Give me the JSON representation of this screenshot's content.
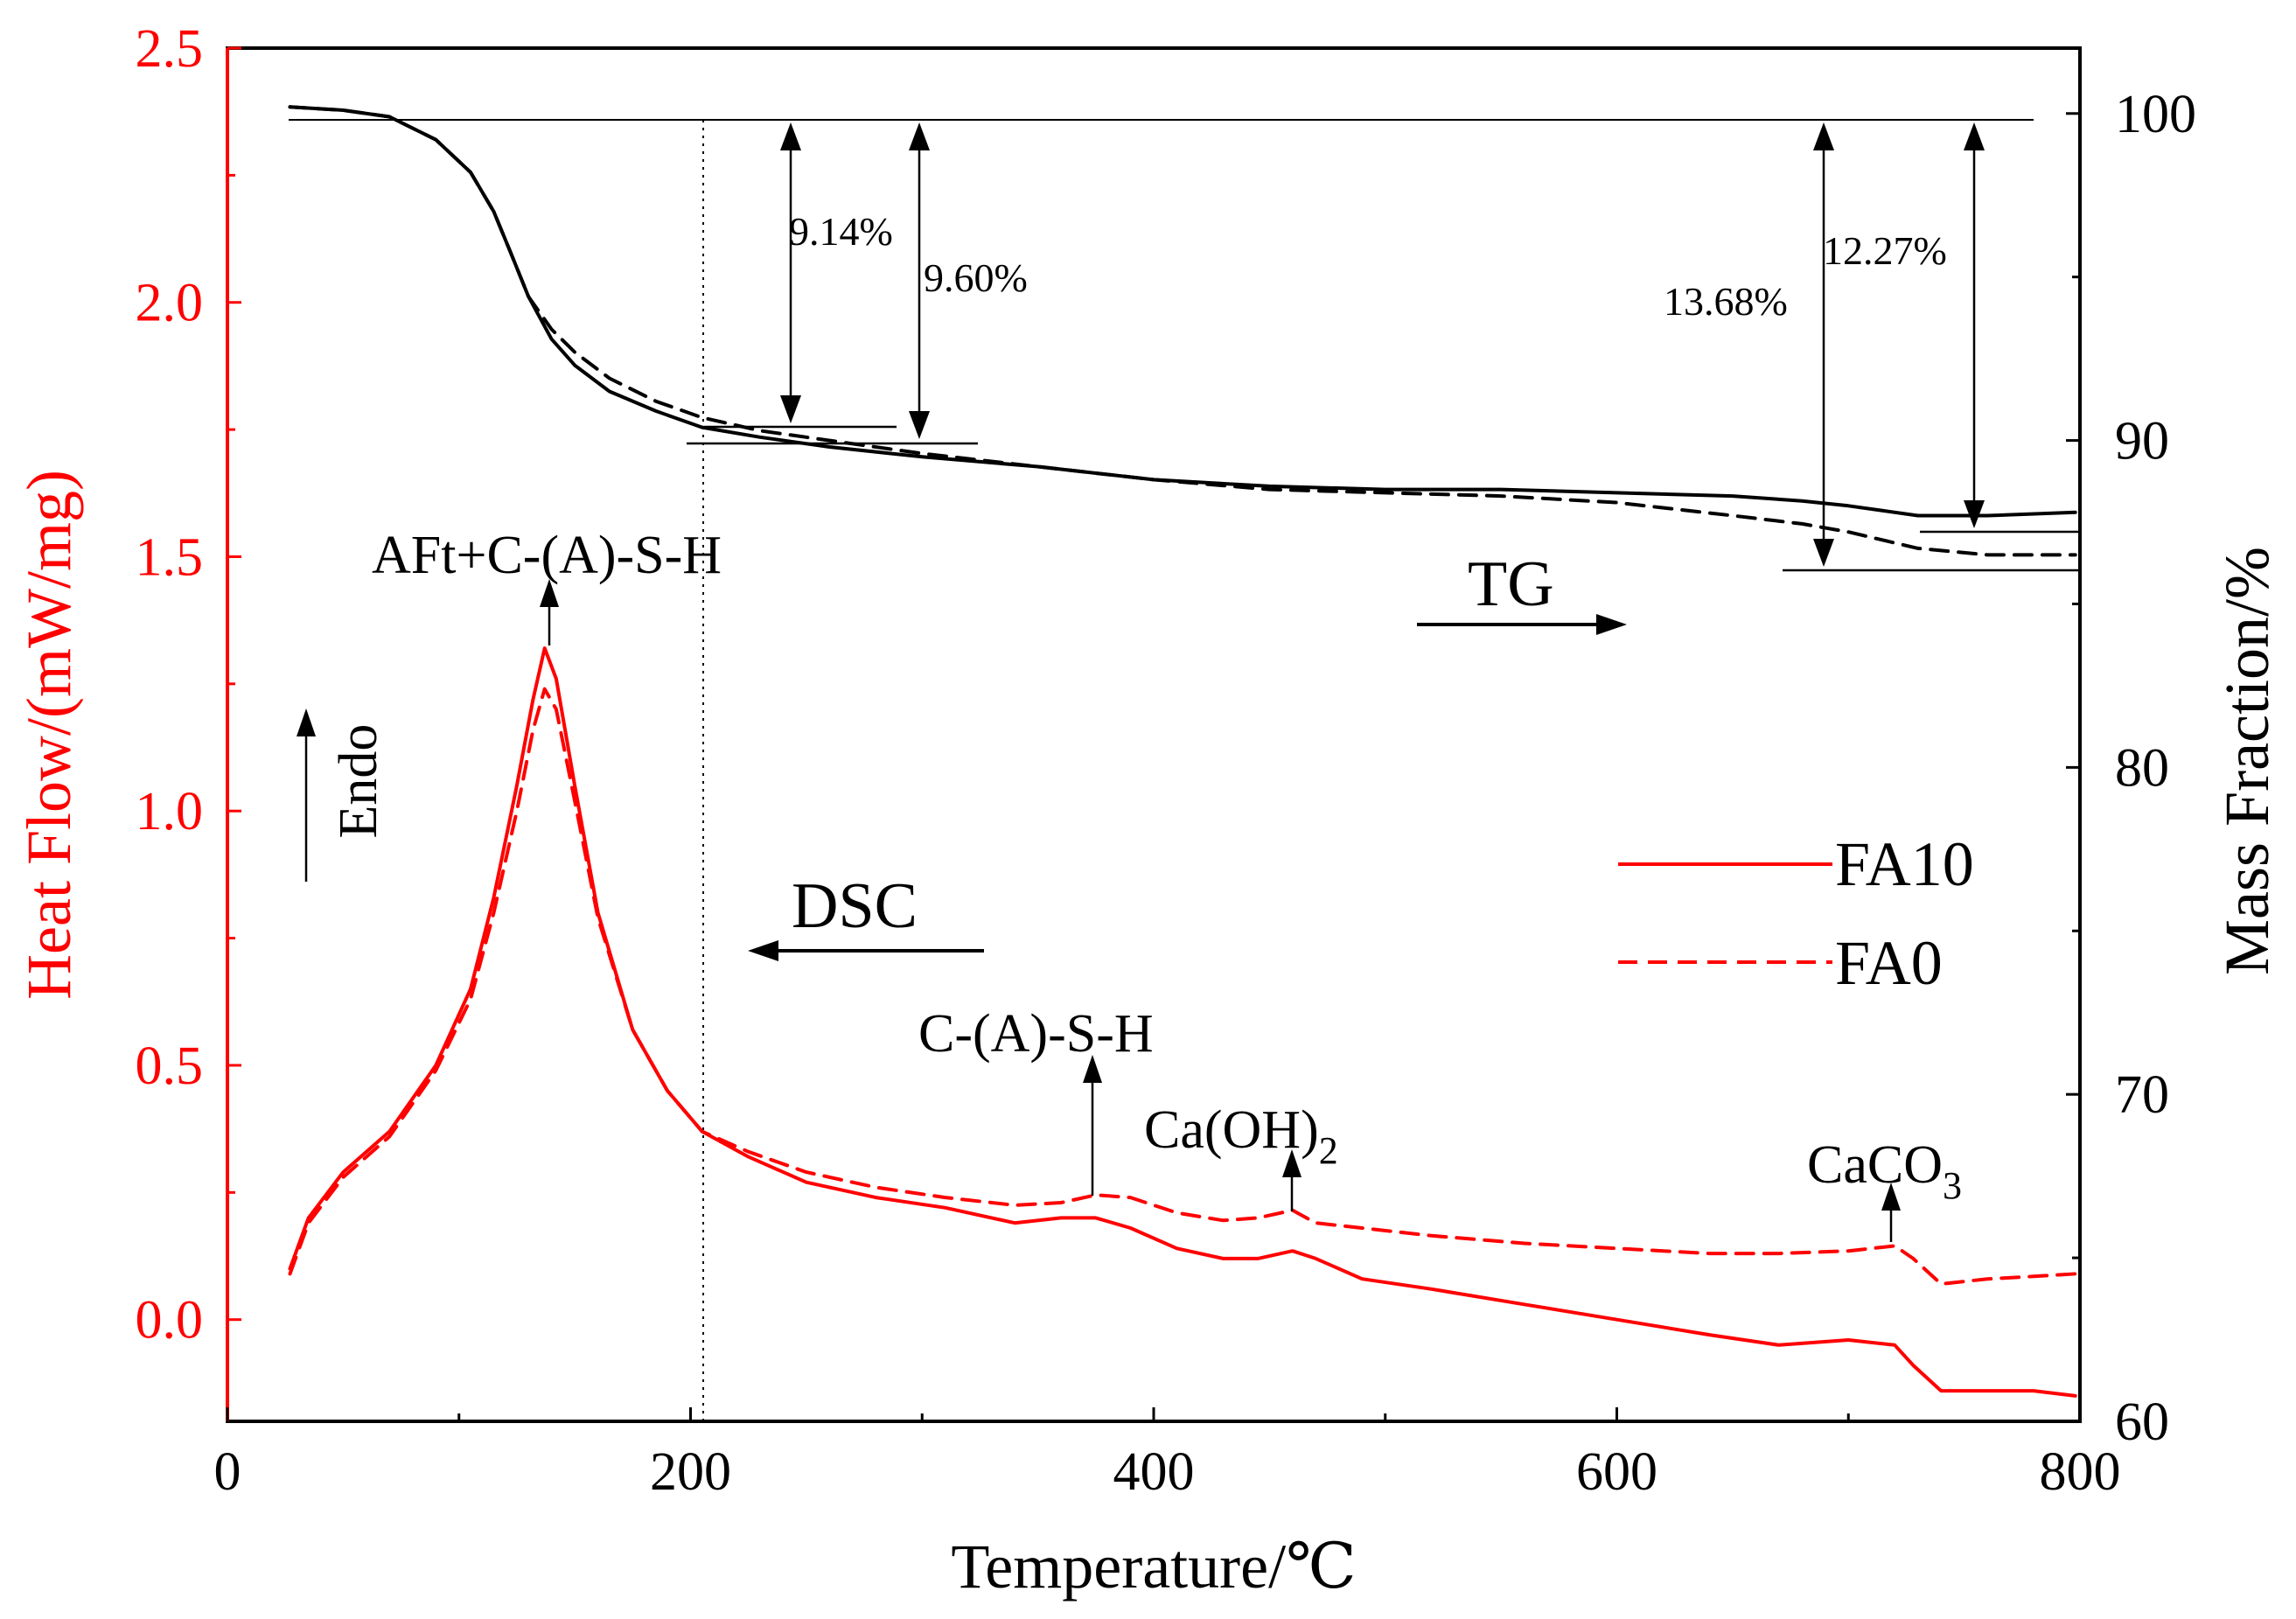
{
  "chart_data": {
    "type": "line",
    "xlabel": "Temperature/℃",
    "x_axis": {
      "range": [
        0,
        800
      ],
      "ticks": [
        0,
        200,
        400,
        600,
        800
      ],
      "tick_labels": [
        "0",
        "200",
        "400",
        "600",
        "800"
      ]
    },
    "y_left": {
      "label": "Heat Flow/(mW/mg)",
      "range": [
        -0.2,
        2.5
      ],
      "ticks": [
        0.0,
        0.5,
        1.0,
        1.5,
        2.0,
        2.5
      ],
      "tick_labels": [
        "0.0",
        "0.5",
        "1.0",
        "1.5",
        "2.0",
        "2.5"
      ],
      "color": "#ff0000"
    },
    "y_right": {
      "label": "Mass Fraction/%",
      "range": [
        60,
        102
      ],
      "ticks": [
        60,
        70,
        80,
        90,
        100
      ],
      "tick_labels": [
        "60",
        "70",
        "80",
        "90",
        "100"
      ],
      "color": "#000000"
    },
    "series": [
      {
        "name": "FA10",
        "kind": "DSC",
        "axis": "left",
        "style": "solid",
        "color": "#ff0000",
        "x": [
          27,
          35,
          50,
          70,
          90,
          105,
          115,
          125,
          132,
          137,
          142,
          150,
          160,
          175,
          190,
          205,
          225,
          250,
          280,
          310,
          340,
          360,
          375,
          390,
          410,
          430,
          445,
          460,
          470,
          490,
          520,
          560,
          600,
          640,
          670,
          700,
          720,
          728,
          740,
          760,
          780,
          798
        ],
        "values": [
          0.1,
          0.2,
          0.29,
          0.37,
          0.5,
          0.65,
          0.83,
          1.05,
          1.22,
          1.32,
          1.26,
          1.05,
          0.8,
          0.57,
          0.45,
          0.37,
          0.32,
          0.27,
          0.24,
          0.22,
          0.19,
          0.2,
          0.2,
          0.18,
          0.14,
          0.12,
          0.12,
          0.135,
          0.12,
          0.08,
          0.06,
          0.03,
          0.0,
          -0.03,
          -0.05,
          -0.04,
          -0.05,
          -0.09,
          -0.14,
          -0.14,
          -0.14,
          -0.15
        ]
      },
      {
        "name": "FA0",
        "kind": "DSC",
        "axis": "left",
        "style": "dashed",
        "color": "#ff0000",
        "x": [
          27,
          35,
          50,
          70,
          90,
          105,
          115,
          125,
          132,
          137,
          142,
          150,
          160,
          175,
          190,
          205,
          225,
          250,
          280,
          310,
          340,
          360,
          375,
          390,
          410,
          430,
          445,
          460,
          470,
          490,
          520,
          560,
          600,
          640,
          670,
          700,
          720,
          728,
          740,
          760,
          780,
          798
        ],
        "values": [
          0.09,
          0.19,
          0.28,
          0.36,
          0.49,
          0.63,
          0.8,
          1.0,
          1.16,
          1.24,
          1.2,
          1.02,
          0.79,
          0.57,
          0.45,
          0.37,
          0.33,
          0.29,
          0.26,
          0.24,
          0.225,
          0.23,
          0.245,
          0.24,
          0.21,
          0.195,
          0.2,
          0.215,
          0.19,
          0.18,
          0.165,
          0.15,
          0.14,
          0.13,
          0.13,
          0.135,
          0.145,
          0.12,
          0.07,
          0.08,
          0.085,
          0.09
        ]
      },
      {
        "name": "FA10",
        "kind": "TG",
        "axis": "right",
        "style": "solid",
        "color": "#000000",
        "x": [
          27,
          50,
          70,
          90,
          105,
          115,
          122,
          130,
          140,
          150,
          165,
          185,
          205,
          230,
          260,
          300,
          350,
          400,
          450,
          500,
          550,
          600,
          650,
          680,
          700,
          715,
          730,
          760,
          798
        ],
        "values": [
          100.2,
          100.1,
          99.9,
          99.2,
          98.2,
          97.0,
          95.8,
          94.4,
          93.1,
          92.3,
          91.5,
          90.9,
          90.4,
          90.1,
          89.8,
          89.5,
          89.2,
          88.8,
          88.6,
          88.5,
          88.5,
          88.4,
          88.3,
          88.15,
          88.0,
          87.85,
          87.7,
          87.7,
          87.8
        ]
      },
      {
        "name": "FA0",
        "kind": "TG",
        "axis": "right",
        "style": "dashed",
        "color": "#000000",
        "x": [
          27,
          50,
          70,
          90,
          105,
          115,
          122,
          130,
          140,
          150,
          165,
          185,
          205,
          230,
          260,
          300,
          350,
          400,
          450,
          500,
          550,
          600,
          650,
          680,
          700,
          715,
          730,
          760,
          798
        ],
        "values": [
          100.2,
          100.1,
          99.9,
          99.2,
          98.2,
          97.0,
          95.8,
          94.4,
          93.4,
          92.7,
          91.9,
          91.2,
          90.7,
          90.3,
          90.0,
          89.6,
          89.2,
          88.8,
          88.5,
          88.4,
          88.3,
          88.1,
          87.7,
          87.45,
          87.2,
          86.95,
          86.7,
          86.5,
          86.5
        ]
      }
    ],
    "legend": {
      "position": "right-middle",
      "entries": [
        {
          "label": "FA10",
          "style": "solid"
        },
        {
          "label": "FA0",
          "style": "dashed"
        }
      ]
    },
    "annotations": {
      "peak_main": "AFt+C-(A)-S-H",
      "peak_csh": "C-(A)-S-H",
      "peak_ch_base": "Ca(OH)",
      "peak_ch_sub": "2",
      "peak_cc_base": "CaCO",
      "peak_cc_sub": "3",
      "endo": "Endo",
      "dsc": "DSC",
      "tg": "TG",
      "loss_1": "9.14%",
      "loss_2": "9.60%",
      "loss_3": "13.68%",
      "loss_4": "12.27%"
    },
    "reference_lines": {
      "dotted_vertical_x": 205,
      "top_mass_level": 100.2
    }
  }
}
